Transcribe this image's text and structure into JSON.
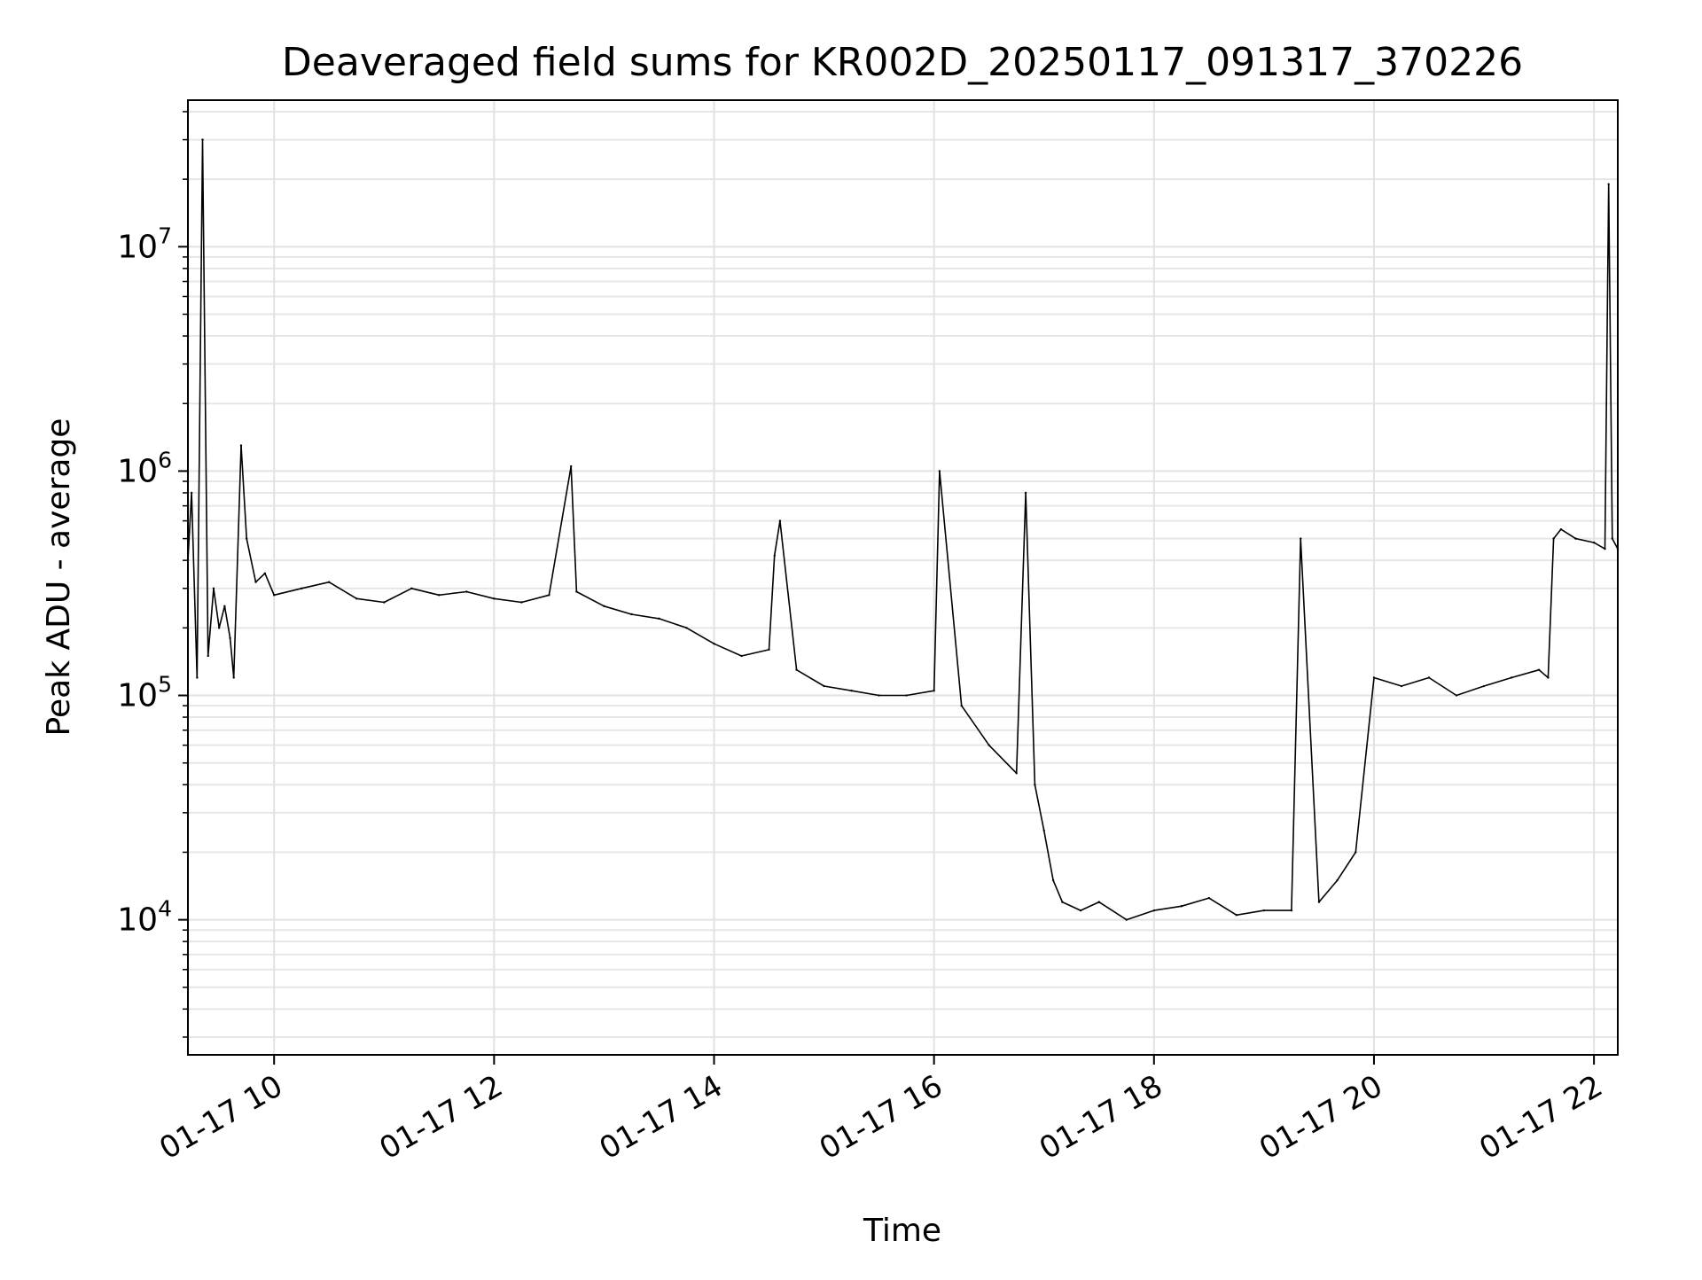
{
  "chart_data": {
    "type": "line",
    "title": "Deaveraged field sums for KR002D_20250117_091317_370226",
    "xlabel": "Time",
    "ylabel": "Peak ADU - average",
    "yscale": "log",
    "grid": true,
    "grid_minor": true,
    "legend": "none",
    "xlim": [
      "01-17 09:13",
      "01-17 22:13"
    ],
    "ylim": [
      2500,
      45000000
    ],
    "x_ticks": [
      "01-17 10",
      "01-17 12",
      "01-17 14",
      "01-17 16",
      "01-17 18",
      "01-17 20",
      "01-17 22"
    ],
    "x_tick_hours": [
      10,
      12,
      14,
      16,
      18,
      20,
      22
    ],
    "y_ticks": [
      {
        "value": 10000,
        "base": "10",
        "exp": "4"
      },
      {
        "value": 100000,
        "base": "10",
        "exp": "5"
      },
      {
        "value": 1000000,
        "base": "10",
        "exp": "6"
      },
      {
        "value": 10000000,
        "base": "10",
        "exp": "7"
      }
    ],
    "series": [
      {
        "color": "#000000",
        "x": [
          "01-17 09:13",
          "01-17 09:15",
          "01-17 09:18",
          "01-17 09:21",
          "01-17 09:24",
          "01-17 09:27",
          "01-17 09:30",
          "01-17 09:33",
          "01-17 09:36",
          "01-17 09:38",
          "01-17 09:42",
          "01-17 09:45",
          "01-17 09:50",
          "01-17 09:55",
          "01-17 10:00",
          "01-17 10:15",
          "01-17 10:30",
          "01-17 10:45",
          "01-17 11:00",
          "01-17 11:15",
          "01-17 11:30",
          "01-17 11:45",
          "01-17 12:00",
          "01-17 12:15",
          "01-17 12:30",
          "01-17 12:42",
          "01-17 12:45",
          "01-17 13:00",
          "01-17 13:15",
          "01-17 13:30",
          "01-17 13:45",
          "01-17 14:00",
          "01-17 14:15",
          "01-17 14:30",
          "01-17 14:33",
          "01-17 14:36",
          "01-17 14:45",
          "01-17 15:00",
          "01-17 15:15",
          "01-17 15:30",
          "01-17 15:45",
          "01-17 16:00",
          "01-17 16:03",
          "01-17 16:15",
          "01-17 16:30",
          "01-17 16:45",
          "01-17 16:50",
          "01-17 16:55",
          "01-17 17:00",
          "01-17 17:05",
          "01-17 17:10",
          "01-17 17:20",
          "01-17 17:30",
          "01-17 17:45",
          "01-17 18:00",
          "01-17 18:15",
          "01-17 18:30",
          "01-17 18:45",
          "01-17 19:00",
          "01-17 19:15",
          "01-17 19:20",
          "01-17 19:30",
          "01-17 19:40",
          "01-17 19:50",
          "01-17 20:00",
          "01-17 20:15",
          "01-17 20:30",
          "01-17 20:45",
          "01-17 21:00",
          "01-17 21:15",
          "01-17 21:30",
          "01-17 21:35",
          "01-17 21:38",
          "01-17 21:42",
          "01-17 21:50",
          "01-17 22:00",
          "01-17 22:06",
          "01-17 22:08",
          "01-17 22:10",
          "01-17 22:13"
        ],
        "y": [
          400000,
          800000,
          120000,
          30000000,
          150000,
          300000,
          200000,
          250000,
          180000,
          120000,
          1300000,
          500000,
          320000,
          350000,
          280000,
          300000,
          320000,
          270000,
          260000,
          300000,
          280000,
          290000,
          270000,
          260000,
          280000,
          1050000,
          290000,
          250000,
          230000,
          220000,
          200000,
          170000,
          150000,
          160000,
          420000,
          600000,
          130000,
          110000,
          105000,
          100000,
          100000,
          105000,
          1000000,
          90000,
          60000,
          45000,
          800000,
          40000,
          25000,
          15000,
          12000,
          11000,
          12000,
          10000,
          11000,
          11500,
          12500,
          10500,
          11000,
          11000,
          500000,
          12000,
          15000,
          20000,
          120000,
          110000,
          120000,
          100000,
          110000,
          120000,
          130000,
          120000,
          500000,
          550000,
          500000,
          480000,
          450000,
          19000000,
          500000,
          450000
        ]
      }
    ]
  }
}
